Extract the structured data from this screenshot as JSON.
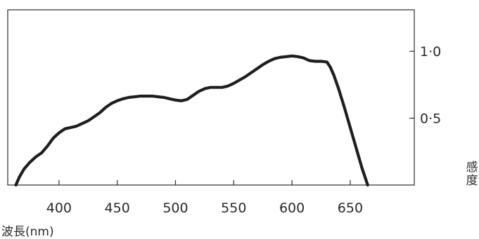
{
  "chart_data": {
    "type": "line",
    "title": "",
    "xlabel": "波長(nm)",
    "ylabel": "感度",
    "xlim": [
      356,
      705
    ],
    "ylim": [
      0,
      1.31
    ],
    "x_ticks": [
      400,
      450,
      500,
      550,
      600,
      650
    ],
    "x_tick_labels": [
      "400",
      "450",
      "500",
      "550",
      "600",
      "650"
    ],
    "y_ticks": [
      0.5,
      1.0
    ],
    "y_tick_labels": [
      "0·5",
      "1·0"
    ],
    "y_axis_side": "right",
    "grid": false,
    "legend": "none",
    "line_color": "#1e1e1e",
    "series": [
      {
        "x": [
          363,
          366,
          370,
          375,
          380,
          385,
          390,
          395,
          400,
          405,
          410,
          415,
          420,
          425,
          430,
          435,
          440,
          445,
          450,
          455,
          460,
          465,
          470,
          475,
          480,
          485,
          490,
          495,
          500,
          505,
          510,
          515,
          520,
          525,
          530,
          535,
          540,
          545,
          550,
          555,
          560,
          565,
          570,
          575,
          580,
          585,
          590,
          595,
          600,
          605,
          610,
          615,
          620,
          625,
          630,
          633,
          636,
          640,
          645,
          650,
          655,
          660,
          665
        ],
        "y": [
          0.0,
          0.06,
          0.12,
          0.17,
          0.21,
          0.24,
          0.29,
          0.35,
          0.39,
          0.42,
          0.43,
          0.44,
          0.46,
          0.48,
          0.51,
          0.54,
          0.58,
          0.61,
          0.63,
          0.645,
          0.655,
          0.66,
          0.665,
          0.665,
          0.665,
          0.66,
          0.655,
          0.645,
          0.635,
          0.63,
          0.64,
          0.67,
          0.7,
          0.72,
          0.73,
          0.73,
          0.73,
          0.74,
          0.76,
          0.785,
          0.81,
          0.84,
          0.87,
          0.9,
          0.925,
          0.945,
          0.955,
          0.96,
          0.965,
          0.96,
          0.95,
          0.93,
          0.925,
          0.925,
          0.92,
          0.88,
          0.82,
          0.72,
          0.58,
          0.43,
          0.28,
          0.13,
          0.0
        ]
      }
    ]
  }
}
